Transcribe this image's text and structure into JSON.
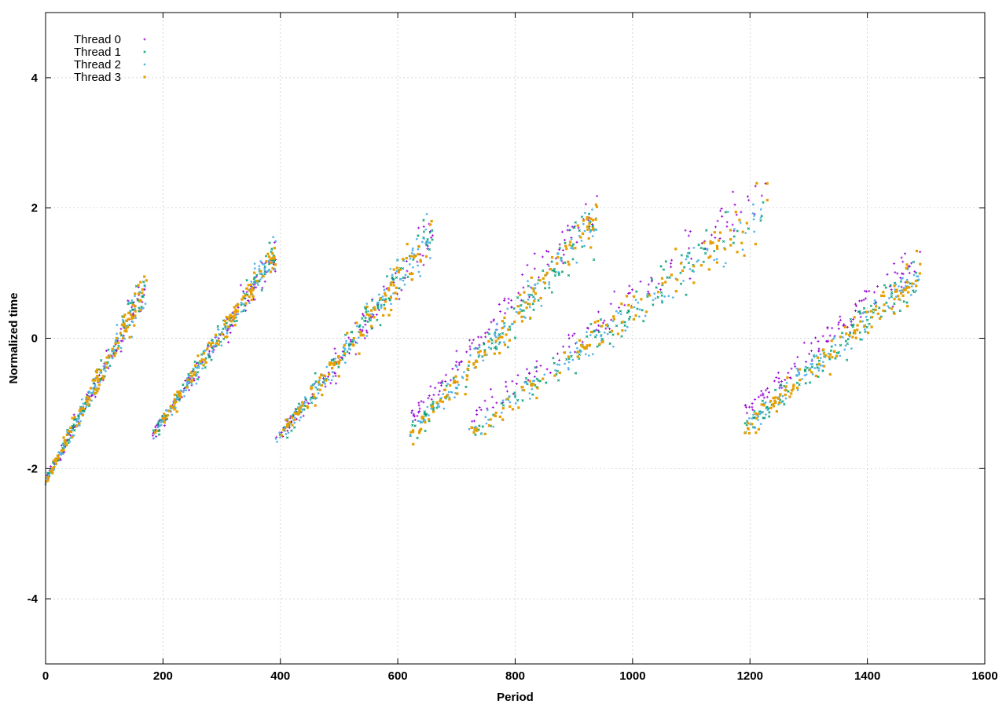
{
  "chart_data": {
    "type": "scatter",
    "title": "",
    "xlabel": "Period",
    "ylabel": "Normalized time",
    "xlim": [
      0,
      1600
    ],
    "ylim": [
      -5,
      5
    ],
    "x_ticks": [
      0,
      200,
      400,
      600,
      800,
      1000,
      1200,
      1400,
      1600
    ],
    "y_ticks": [
      -4,
      -2,
      0,
      2,
      4
    ],
    "grid": true,
    "legend_position": "top-left",
    "series": [
      {
        "name": "Thread 0",
        "color": "#9400d3",
        "marker": "plus"
      },
      {
        "name": "Thread 1",
        "color": "#009e73",
        "marker": "cross"
      },
      {
        "name": "Thread 2",
        "color": "#56b4e9",
        "marker": "star"
      },
      {
        "name": "Thread 3",
        "color": "#e69f00",
        "marker": "box"
      }
    ],
    "segments": [
      {
        "x": [
          0,
          172
        ],
        "start": -2.2,
        "end": 0.8,
        "spread": [
          0.1,
          0.35
        ]
      },
      {
        "x": [
          182,
          392
        ],
        "start": -1.5,
        "end": 1.3,
        "spread": [
          0.12,
          0.35
        ]
      },
      {
        "x": [
          392,
          660
        ],
        "start": -1.6,
        "end": 1.6,
        "spread": [
          0.15,
          0.5
        ]
      },
      {
        "x": [
          620,
          940
        ],
        "start": -1.5,
        "end": 1.8,
        "spread": [
          0.2,
          0.5
        ]
      },
      {
        "x": [
          720,
          1230
        ],
        "start": -1.5,
        "end": 2.0,
        "spread": [
          0.2,
          0.55
        ]
      },
      {
        "x": [
          1190,
          1490
        ],
        "start": -1.4,
        "end": 1.0,
        "spread": [
          0.2,
          0.4
        ]
      }
    ]
  }
}
